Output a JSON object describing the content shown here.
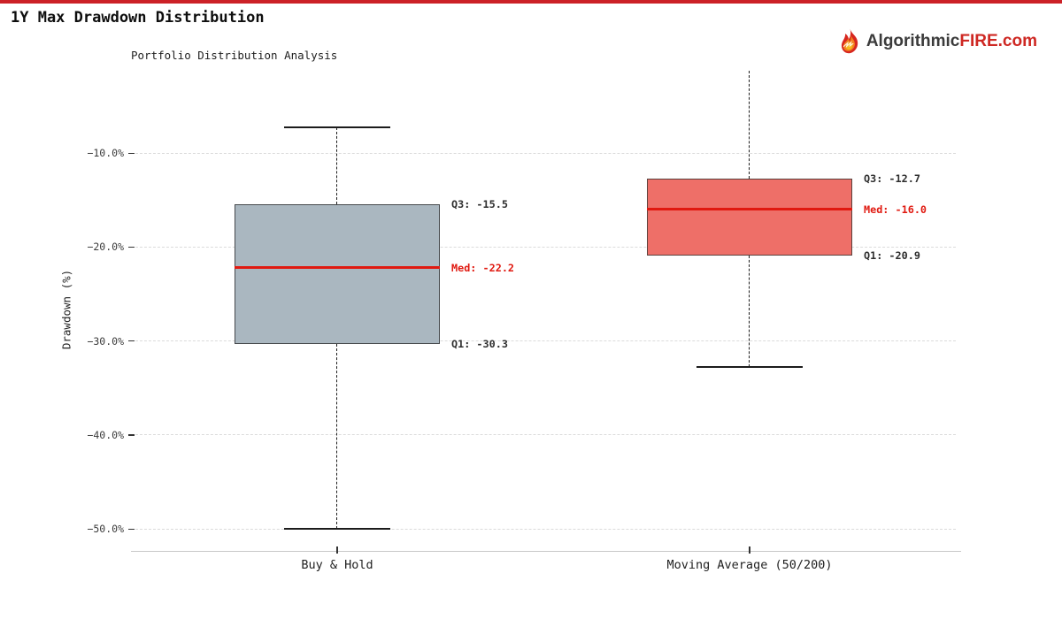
{
  "header": {
    "title": "1Y Max Drawdown Distribution",
    "brand": {
      "dark": "Algorithmic",
      "red": "FIRE.com"
    }
  },
  "colors": {
    "top_border": "#cc2127",
    "brand_red": "#ce2823",
    "median_line": "#e01910",
    "median_text": "#e01910",
    "whisker": "#1c1c1c",
    "gridline": "#dbdbdb",
    "axis_line": "#c8c8c8"
  },
  "chart_data": {
    "type": "boxplot",
    "title": "Portfolio Distribution Analysis",
    "ylabel": "Drawdown (%)",
    "grid": "horizontal dashed",
    "legend": "none",
    "categories": [
      "Buy & Hold",
      "Moving Average (50/200)"
    ],
    "yticks": {
      "values": [
        -10,
        -20,
        -30,
        -40,
        -50
      ],
      "labels": [
        "−10.0%",
        "−20.0%",
        "−30.0%",
        "−40.0%",
        "−50.0%"
      ]
    },
    "series": [
      {
        "label": "Buy & Hold",
        "q1": -30.3,
        "median": -22.2,
        "q3": -15.5,
        "whisker_low": -50.0,
        "whisker_high": -7.3,
        "whisker_high_clipped": false,
        "box_fill": "#aab7c0",
        "box_border": "#46494c",
        "annotations": {
          "q3": "Q3: -15.5",
          "med": "Med: -22.2",
          "q1": "Q1: -30.3"
        }
      },
      {
        "label": "Moving Average (50/200)",
        "q1": -20.9,
        "median": -16.0,
        "q3": -12.7,
        "whisker_low": -32.8,
        "whisker_high": null,
        "whisker_high_clipped": true,
        "box_fill": "#ee6f68",
        "box_border": "#5a413c",
        "annotations": {
          "q3": "Q3: -12.7",
          "med": "Med: -16.0",
          "q1": "Q1: -20.9"
        }
      }
    ]
  }
}
